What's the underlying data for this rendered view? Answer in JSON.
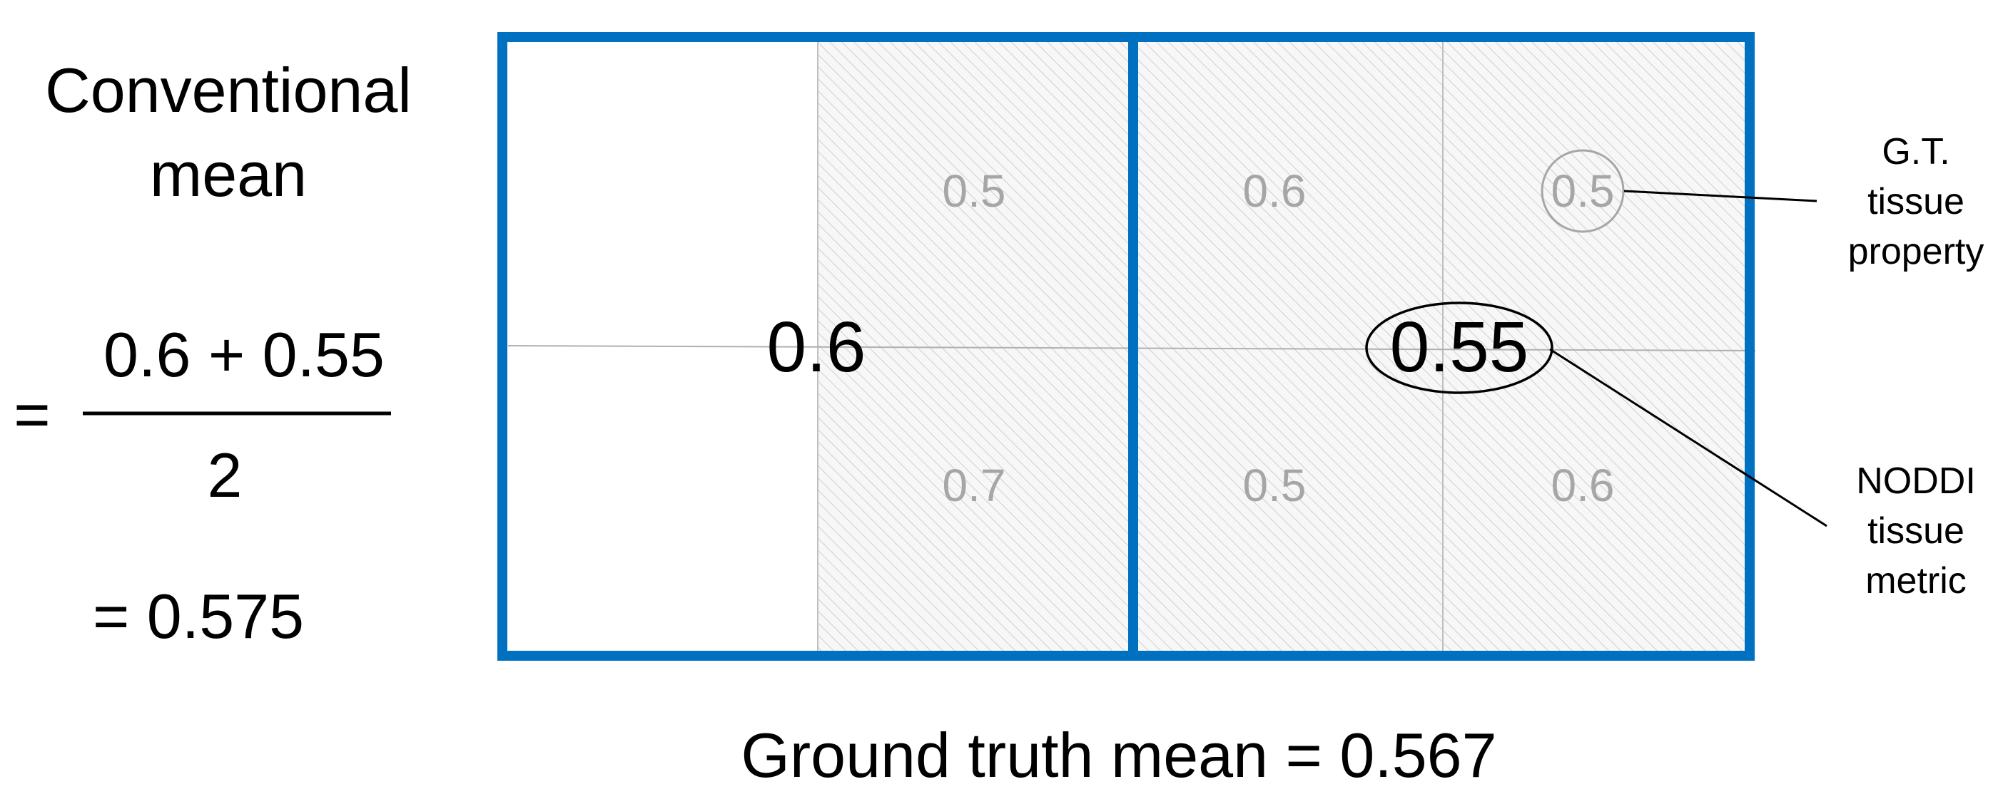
{
  "left_panel": {
    "heading_line1": "Conventional",
    "heading_line2": "mean",
    "equals_sign": "=",
    "numerator": "0.6 + 0.55",
    "denominator": "2",
    "result": "= 0.575"
  },
  "grid": {
    "voxel_left_value": "0.6",
    "voxel_right_value": "0.55",
    "cells": [
      {
        "id": "tl",
        "value": "",
        "hatched": false
      },
      {
        "id": "tm1",
        "value": "0.5",
        "hatched": true
      },
      {
        "id": "tm2",
        "value": "0.6",
        "hatched": true
      },
      {
        "id": "tr",
        "value": "0.5",
        "hatched": true
      },
      {
        "id": "bl",
        "value": "",
        "hatched": false
      },
      {
        "id": "bm1",
        "value": "0.7",
        "hatched": true
      },
      {
        "id": "bm2",
        "value": "0.5",
        "hatched": true
      },
      {
        "id": "br",
        "value": "0.6",
        "hatched": true
      }
    ]
  },
  "annotations": {
    "gt_label": [
      "G.T.",
      "tissue",
      "property"
    ],
    "noddi_label": [
      "NODDI",
      "tissue",
      "metric"
    ]
  },
  "footer": {
    "ground_truth": "Ground truth mean = 0.567"
  },
  "colors": {
    "frame_blue": "#0070c0",
    "cell_text_gray": "#a6a6a6",
    "grid_line_gray": "#bfbfbf",
    "hatch_gray": "#d0d0d0",
    "text_black": "#000000"
  }
}
